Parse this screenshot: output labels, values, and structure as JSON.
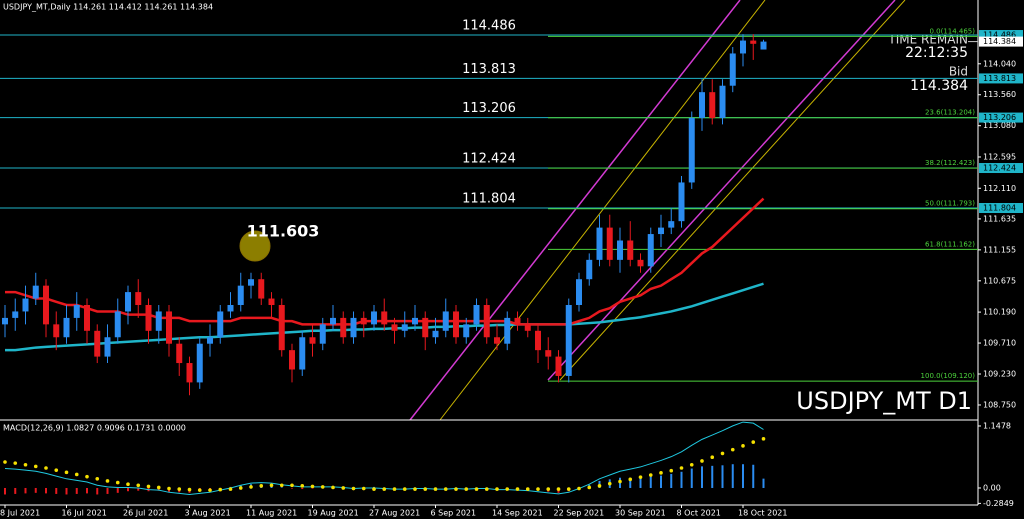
{
  "chart_data": [
    {
      "type": "candlestick",
      "title": "USDJPY_MT,Daily  114.261 114.412 114.261 114.384",
      "watermark": "USDJPY_MT D1",
      "x": [
        "8 Jul 2021",
        null,
        null,
        null,
        null,
        null,
        "16 Jul 2021",
        null,
        null,
        null,
        null,
        null,
        "26 Jul 2021",
        null,
        null,
        null,
        null,
        null,
        "3 Aug 2021",
        null,
        null,
        null,
        null,
        null,
        "11 Aug 2021",
        null,
        null,
        null,
        null,
        null,
        "19 Aug 2021",
        null,
        null,
        null,
        null,
        null,
        "27 Aug 2021",
        null,
        null,
        null,
        null,
        null,
        "6 Sep 2021",
        null,
        null,
        null,
        null,
        null,
        "14 Sep 2021",
        null,
        null,
        null,
        null,
        null,
        "22 Sep 2021",
        null,
        null,
        null,
        null,
        null,
        "30 Sep 2021",
        null,
        null,
        null,
        null,
        null,
        "8 Oct 2021",
        null,
        null,
        null,
        null,
        null,
        "18 Oct 2021",
        null,
        null
      ],
      "up_color": "#2b8cf0",
      "down_color": "#e8191e",
      "ohlc": [
        [
          110.0,
          110.3,
          109.8,
          110.1
        ],
        [
          110.1,
          110.4,
          109.9,
          110.2
        ],
        [
          110.2,
          110.6,
          110.0,
          110.4
        ],
        [
          110.4,
          110.8,
          110.3,
          110.6
        ],
        [
          110.6,
          110.7,
          109.8,
          110.0
        ],
        [
          110.0,
          110.2,
          109.6,
          109.8
        ],
        [
          109.8,
          110.3,
          109.7,
          110.1
        ],
        [
          110.1,
          110.5,
          109.9,
          110.3
        ],
        [
          110.3,
          110.4,
          109.7,
          109.9
        ],
        [
          109.9,
          110.0,
          109.4,
          109.5
        ],
        [
          109.5,
          110.0,
          109.4,
          109.8
        ],
        [
          109.8,
          110.4,
          109.7,
          110.2
        ],
        [
          110.2,
          110.6,
          110.0,
          110.5
        ],
        [
          110.5,
          110.7,
          110.1,
          110.3
        ],
        [
          110.3,
          110.4,
          109.7,
          109.9
        ],
        [
          109.9,
          110.3,
          109.7,
          110.2
        ],
        [
          110.2,
          110.3,
          109.5,
          109.7
        ],
        [
          109.7,
          109.8,
          109.2,
          109.4
        ],
        [
          109.4,
          109.5,
          108.9,
          109.1
        ],
        [
          109.1,
          109.8,
          109.0,
          109.7
        ],
        [
          109.7,
          110.0,
          109.5,
          109.8
        ],
        [
          109.8,
          110.3,
          109.7,
          110.2
        ],
        [
          110.2,
          110.5,
          110.1,
          110.3
        ],
        [
          110.3,
          110.8,
          110.2,
          110.6
        ],
        [
          110.6,
          110.8,
          110.4,
          110.7
        ],
        [
          110.7,
          110.8,
          110.3,
          110.4
        ],
        [
          110.4,
          110.5,
          110.1,
          110.3
        ],
        [
          110.3,
          110.4,
          109.5,
          109.6
        ],
        [
          109.6,
          109.7,
          109.1,
          109.3
        ],
        [
          109.3,
          109.9,
          109.2,
          109.8
        ],
        [
          109.8,
          110.0,
          109.5,
          109.7
        ],
        [
          109.7,
          110.1,
          109.6,
          110.0
        ],
        [
          110.0,
          110.3,
          109.9,
          110.1
        ],
        [
          110.1,
          110.2,
          109.7,
          109.8
        ],
        [
          109.8,
          110.2,
          109.7,
          110.1
        ],
        [
          110.1,
          110.2,
          109.8,
          110.0
        ],
        [
          110.0,
          110.3,
          109.9,
          110.2
        ],
        [
          110.2,
          110.4,
          109.9,
          110.0
        ],
        [
          110.0,
          110.1,
          109.7,
          109.9
        ],
        [
          109.9,
          110.2,
          109.8,
          110.0
        ],
        [
          110.0,
          110.3,
          109.9,
          110.1
        ],
        [
          110.1,
          110.2,
          109.6,
          109.8
        ],
        [
          109.8,
          110.1,
          109.7,
          109.9
        ],
        [
          109.9,
          110.4,
          109.8,
          110.2
        ],
        [
          110.2,
          110.3,
          109.7,
          109.8
        ],
        [
          109.8,
          110.1,
          109.7,
          110.0
        ],
        [
          110.0,
          110.4,
          109.9,
          110.3
        ],
        [
          110.3,
          110.4,
          109.7,
          109.8
        ],
        [
          109.8,
          110.0,
          109.6,
          109.7
        ],
        [
          109.7,
          110.2,
          109.6,
          110.1
        ],
        [
          110.1,
          110.2,
          109.9,
          110.0
        ],
        [
          110.0,
          110.1,
          109.8,
          109.9
        ],
        [
          109.9,
          110.0,
          109.4,
          109.6
        ],
        [
          109.6,
          109.8,
          109.3,
          109.5
        ],
        [
          109.5,
          109.6,
          109.1,
          109.2
        ],
        [
          109.2,
          110.4,
          109.1,
          110.3
        ],
        [
          110.3,
          110.8,
          110.2,
          110.7
        ],
        [
          110.7,
          111.1,
          110.6,
          111.0
        ],
        [
          111.0,
          111.7,
          110.9,
          111.5
        ],
        [
          111.5,
          111.7,
          110.9,
          111.0
        ],
        [
          111.0,
          111.5,
          110.8,
          111.3
        ],
        [
          111.3,
          111.6,
          110.9,
          111.0
        ],
        [
          111.0,
          111.1,
          110.8,
          110.9
        ],
        [
          110.9,
          111.5,
          110.8,
          111.4
        ],
        [
          111.4,
          111.7,
          111.2,
          111.5
        ],
        [
          111.5,
          111.8,
          111.4,
          111.6
        ],
        [
          111.6,
          112.3,
          111.5,
          112.2
        ],
        [
          112.2,
          113.3,
          112.1,
          113.2
        ],
        [
          113.2,
          113.8,
          113.0,
          113.6
        ],
        [
          113.6,
          113.8,
          113.1,
          113.2
        ],
        [
          113.2,
          113.8,
          113.1,
          113.7
        ],
        [
          113.7,
          114.3,
          113.6,
          114.2
        ],
        [
          114.2,
          114.5,
          114.0,
          114.4
        ],
        [
          114.4,
          114.5,
          114.1,
          114.35
        ],
        [
          114.261,
          114.412,
          114.261,
          114.384
        ]
      ],
      "lines": [
        {
          "color": "#1fb5c9",
          "values": [
            109.6,
            109.6,
            109.62,
            109.64,
            109.65,
            109.66,
            109.67,
            109.68,
            109.69,
            109.7,
            109.71,
            109.72,
            109.73,
            109.74,
            109.75,
            109.76,
            109.77,
            109.78,
            109.79,
            109.8,
            109.8,
            109.81,
            109.82,
            109.83,
            109.84,
            109.85,
            109.86,
            109.87,
            109.88,
            109.89,
            109.9,
            109.9,
            109.91,
            109.91,
            109.92,
            109.92,
            109.93,
            109.93,
            109.94,
            109.94,
            109.95,
            109.95,
            109.96,
            109.96,
            109.97,
            109.97,
            109.98,
            109.98,
            109.99,
            109.99,
            110.0,
            110.0,
            110.0,
            110.0,
            110.0,
            110.0,
            110.01,
            110.02,
            110.03,
            110.05,
            110.07,
            110.09,
            110.11,
            110.14,
            110.17,
            110.2,
            110.24,
            110.28,
            110.33,
            110.38,
            110.43,
            110.48,
            110.53,
            110.58,
            110.63
          ]
        },
        {
          "color": "#e8191e",
          "values": [
            110.5,
            110.5,
            110.45,
            110.4,
            110.4,
            110.35,
            110.3,
            110.3,
            110.25,
            110.2,
            110.2,
            110.2,
            110.15,
            110.15,
            110.15,
            110.1,
            110.1,
            110.1,
            110.05,
            110.05,
            110.05,
            110.05,
            110.05,
            110.1,
            110.1,
            110.1,
            110.1,
            110.05,
            110.05,
            110.0,
            110.0,
            110.0,
            110.0,
            110.0,
            110.0,
            110.05,
            110.05,
            110.05,
            110.05,
            110.05,
            110.05,
            110.05,
            110.05,
            110.05,
            110.05,
            110.05,
            110.05,
            110.05,
            110.05,
            110.05,
            110.0,
            110.0,
            110.0,
            110.0,
            110.0,
            110.0,
            110.05,
            110.1,
            110.2,
            110.25,
            110.35,
            110.4,
            110.45,
            110.55,
            110.6,
            110.7,
            110.8,
            110.95,
            111.1,
            111.2,
            111.35,
            111.5,
            111.65,
            111.8,
            111.95
          ]
        }
      ],
      "levels": [
        114.486,
        113.813,
        113.206,
        112.424,
        111.804
      ],
      "level_color": "#1fb5c9",
      "fib_levels": [
        {
          "value": 114.465,
          "label": "0.0(114.465)"
        },
        {
          "value": 113.204,
          "label": "23.6(113.204)"
        },
        {
          "value": 112.423,
          "label": "38.2(112.423)"
        },
        {
          "value": 111.793,
          "label": "50.0(111.793)"
        },
        {
          "value": 111.162,
          "label": "61.8(111.162)"
        },
        {
          "value": 109.12,
          "label": "100.0(109.120)"
        }
      ],
      "fib_color": "#4cd23c",
      "annotation": "111.603",
      "time_remain_label": "TIME REMAIN",
      "time_remain": "22:12:35",
      "bid_label": "Bid",
      "bid": 114.384,
      "ylim": [
        108.517,
        115.029
      ],
      "yticks": [
        {
          "value": 114.04,
          "label": "114.040"
        },
        {
          "value": 113.56,
          "label": "113.560"
        },
        {
          "value": 113.08,
          "label": "113.080"
        },
        112.595,
        {
          "value": 112.11,
          "label": "112.110"
        },
        111.635,
        111.155,
        110.675,
        {
          "value": 110.19,
          "label": "110.190"
        },
        {
          "value": 109.71,
          "label": "109.710"
        },
        {
          "value": 109.23,
          "label": "109.230"
        },
        {
          "value": 108.75,
          "label": "108.750"
        }
      ]
    },
    {
      "type": "macd",
      "title": "MACD(12,26,9) 1.0827 0.9096 0.1731 0.0000",
      "histogram": {
        "up_color": "#2b8cf0",
        "down_color": "#e8191e",
        "values": [
          -0.12,
          -0.11,
          -0.1,
          -0.09,
          -0.1,
          -0.11,
          -0.12,
          -0.11,
          -0.1,
          -0.12,
          -0.11,
          -0.09,
          -0.06,
          -0.05,
          -0.06,
          -0.05,
          -0.07,
          -0.08,
          -0.09,
          -0.06,
          -0.04,
          -0.01,
          0.02,
          0.05,
          0.07,
          0.06,
          0.04,
          0.01,
          -0.01,
          -0.02,
          -0.01,
          0.0,
          0.01,
          0.01,
          0.0,
          0.01,
          0.02,
          0.01,
          0.0,
          0.0,
          0.01,
          0.01,
          0.0,
          0.0,
          0.01,
          0.0,
          0.01,
          0.01,
          -0.01,
          -0.01,
          -0.02,
          -0.03,
          -0.05,
          -0.07,
          -0.09,
          -0.06,
          0.0,
          0.06,
          0.13,
          0.16,
          0.19,
          0.19,
          0.19,
          0.21,
          0.23,
          0.26,
          0.3,
          0.36,
          0.4,
          0.41,
          0.42,
          0.44,
          0.44,
          0.43,
          0.1731
        ]
      },
      "macd": {
        "color": "#1fc8e0",
        "values": [
          0.36,
          0.35,
          0.33,
          0.31,
          0.27,
          0.22,
          0.17,
          0.14,
          0.11,
          0.05,
          0.02,
          0.01,
          0.01,
          0.0,
          -0.03,
          -0.04,
          -0.08,
          -0.1,
          -0.12,
          -0.1,
          -0.08,
          -0.04,
          0.0,
          0.05,
          0.09,
          0.1,
          0.09,
          0.06,
          0.04,
          0.02,
          0.02,
          0.02,
          0.02,
          0.01,
          -0.01,
          0.0,
          0.0,
          -0.01,
          -0.02,
          -0.02,
          -0.01,
          -0.01,
          -0.02,
          -0.02,
          -0.01,
          -0.02,
          -0.01,
          -0.01,
          -0.03,
          -0.03,
          -0.04,
          -0.05,
          -0.07,
          -0.09,
          -0.11,
          -0.08,
          -0.01,
          0.07,
          0.17,
          0.24,
          0.31,
          0.35,
          0.39,
          0.45,
          0.51,
          0.58,
          0.67,
          0.79,
          0.9,
          0.98,
          1.06,
          1.15,
          1.22,
          1.2,
          1.0827
        ]
      },
      "signal": {
        "color": "#f5e000",
        "values": [
          0.48,
          0.46,
          0.43,
          0.4,
          0.37,
          0.33,
          0.29,
          0.25,
          0.21,
          0.17,
          0.13,
          0.1,
          0.07,
          0.05,
          0.03,
          0.01,
          -0.01,
          -0.02,
          -0.03,
          -0.04,
          -0.04,
          -0.03,
          -0.02,
          0.0,
          0.02,
          0.04,
          0.05,
          0.05,
          0.05,
          0.04,
          0.03,
          0.02,
          0.01,
          0.0,
          -0.01,
          -0.01,
          -0.02,
          -0.02,
          -0.02,
          -0.02,
          -0.02,
          -0.02,
          -0.02,
          -0.02,
          -0.02,
          -0.02,
          -0.02,
          -0.02,
          -0.02,
          -0.02,
          -0.02,
          -0.02,
          -0.02,
          -0.02,
          -0.02,
          -0.02,
          -0.01,
          0.01,
          0.04,
          0.08,
          0.12,
          0.16,
          0.2,
          0.24,
          0.28,
          0.32,
          0.37,
          0.43,
          0.5,
          0.57,
          0.64,
          0.71,
          0.78,
          0.85,
          0.9096
        ]
      },
      "ylim": [
        -0.315,
        1.24
      ],
      "yticks": [
        1.1478,
        {
          "value": 0,
          "label": "0.00"
        },
        -0.2849
      ]
    }
  ]
}
